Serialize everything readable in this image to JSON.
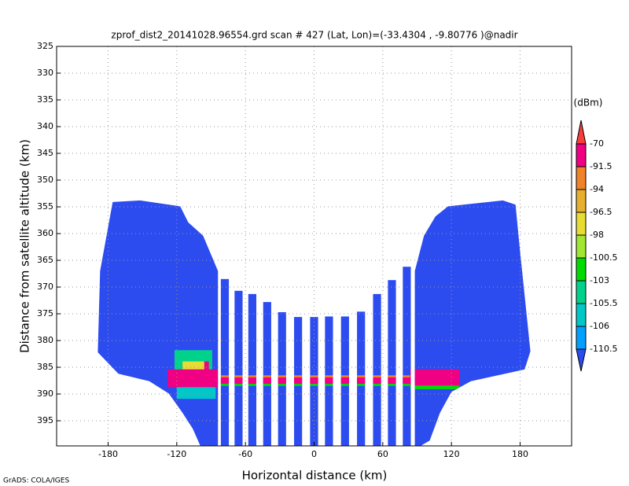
{
  "chart_data": {
    "type": "field",
    "title": "zprof_dist2_20141028.96554.grd  scan # 427  (Lat, Lon)=(-33.4304 , -9.80776 )@nadir",
    "x_label": "Horizontal distance (km)",
    "y_label": "Distance from satellite altitude (km)",
    "footer": "GrADS: COLA/IGES",
    "colorbar_label": "(dBm)",
    "xlim": [
      -225,
      225
    ],
    "xticks": [
      -180,
      -120,
      -60,
      0,
      60,
      120,
      180
    ],
    "ylim": [
      325,
      399.7
    ],
    "yticks": [
      325,
      330,
      335,
      340,
      345,
      350,
      355,
      360,
      365,
      370,
      375,
      380,
      385,
      390,
      395
    ],
    "grid": true,
    "levels": [
      -110.5,
      -106,
      -105.5,
      -103,
      -100.5,
      -98,
      -96.5,
      -94,
      -91.5,
      -70
    ],
    "colors": [
      "#2c4cf0",
      "#00a0ff",
      "#00c8c8",
      "#00d28c",
      "#00dc00",
      "#a0e632",
      "#e6dc32",
      "#e6af2d",
      "#f08228",
      "#f00082",
      "#fa3c3c"
    ],
    "polygons": [
      {
        "points": [
          [
            -176,
            354.1
          ],
          [
            -152,
            353.8
          ],
          [
            -117,
            354.9
          ],
          [
            -110,
            357.9
          ],
          [
            -97,
            360.4
          ],
          [
            -84,
            367
          ],
          [
            -84,
            399.7
          ],
          [
            -99.4,
            399.7
          ],
          [
            -106,
            396.5
          ],
          [
            -115,
            393.5
          ],
          [
            -127,
            389.9
          ],
          [
            -144,
            387.6
          ],
          [
            -171,
            386.2
          ],
          [
            -189,
            382.2
          ],
          [
            -187,
            367
          ]
        ],
        "value": -112
      },
      {
        "points": [
          [
            106,
            356.8
          ],
          [
            117,
            354.9
          ],
          [
            165,
            353.8
          ],
          [
            176,
            354.6
          ],
          [
            180,
            363.4
          ],
          [
            189,
            382
          ],
          [
            184,
            385.4
          ],
          [
            137,
            387.6
          ],
          [
            120,
            389.6
          ],
          [
            110,
            393.5
          ],
          [
            101,
            398.7
          ],
          [
            93,
            399.7
          ],
          [
            88,
            399.7
          ],
          [
            88,
            367
          ],
          [
            96,
            360.4
          ]
        ],
        "value": -112
      }
    ],
    "stripes": [
      {
        "x": [
          -81.5,
          -74.5
        ],
        "y": [
          368.5,
          399.7
        ],
        "value": -112
      },
      {
        "x": [
          -69.5,
          -62.5
        ],
        "y": [
          370.7,
          399.7
        ],
        "value": -112
      },
      {
        "x": [
          -57.5,
          -50.5
        ],
        "y": [
          371.3,
          399.7
        ],
        "value": -112
      },
      {
        "x": [
          -44.5,
          -37.5
        ],
        "y": [
          372.8,
          399.7
        ],
        "value": -112
      },
      {
        "x": [
          -31.5,
          -24.5
        ],
        "y": [
          374.7,
          399.7
        ],
        "value": -112
      },
      {
        "x": [
          -17.5,
          -10.5
        ],
        "y": [
          375.6,
          399.7
        ],
        "value": -112
      },
      {
        "x": [
          -3.5,
          3.5
        ],
        "y": [
          375.6,
          399.7
        ],
        "value": -112
      },
      {
        "x": [
          9.5,
          16.5
        ],
        "y": [
          375.5,
          399.7
        ],
        "value": -112
      },
      {
        "x": [
          23.5,
          30.5
        ],
        "y": [
          375.5,
          399.7
        ],
        "value": -112
      },
      {
        "x": [
          37.5,
          44.5
        ],
        "y": [
          374.6,
          399.7
        ],
        "value": -112
      },
      {
        "x": [
          51.5,
          58.5
        ],
        "y": [
          371.3,
          399.7
        ],
        "value": -112
      },
      {
        "x": [
          64.5,
          71.5
        ],
        "y": [
          368.7,
          399.7
        ],
        "value": -112
      },
      {
        "x": [
          77.5,
          84.5
        ],
        "y": [
          366.2,
          399.7
        ],
        "value": -112
      }
    ],
    "cells": [
      {
        "x": [
          -122,
          -89
        ],
        "y": [
          381.8,
          385.4
        ],
        "value": -104
      },
      {
        "x": [
          -115,
          -95
        ],
        "y": [
          383.9,
          385.4
        ],
        "value": -97
      },
      {
        "x": [
          -96,
          -92
        ],
        "y": [
          383.9,
          386.4
        ],
        "value": -72
      },
      {
        "x": [
          -120,
          -86
        ],
        "y": [
          388.7,
          390.9
        ],
        "value": -105.8
      },
      {
        "x": [
          -128,
          -84
        ],
        "y": [
          385.4,
          388.7
        ],
        "value": -85
      },
      {
        "x": [
          -84,
          84
        ],
        "y": [
          386.5,
          386.9
        ],
        "value": -93
      },
      {
        "x": [
          -84,
          84
        ],
        "y": [
          386.9,
          388.1
        ],
        "value": -85
      },
      {
        "x": [
          -84,
          84
        ],
        "y": [
          388.1,
          388.5
        ],
        "value": -102
      },
      {
        "x": [
          84,
          127
        ],
        "y": [
          388.4,
          389.1
        ],
        "value": -102
      },
      {
        "x": [
          84,
          127
        ],
        "y": [
          385.4,
          388.4
        ],
        "value": -85
      }
    ]
  }
}
